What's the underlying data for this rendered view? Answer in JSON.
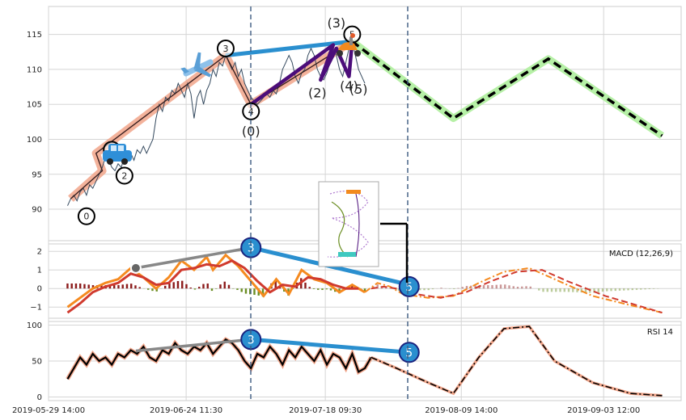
{
  "colors": {
    "grid": "#d5d5d5",
    "price": "#34495e",
    "salmon": "#f1a58a",
    "blue": "#2a8fcf",
    "purple": "#4b0d7a",
    "green_band": "#b6f0a6",
    "macd_orange": "#f58a1f",
    "macd_red": "#d03a2e",
    "hist_red": "#8b1a1a",
    "hist_green": "#6b8e23"
  },
  "chart_data": [
    {
      "type": "line",
      "panel": "price",
      "yticks": [
        90,
        95,
        100,
        105,
        110,
        115
      ],
      "ylim": [
        85.5,
        119
      ],
      "dates": [
        "2019-05-29 14:00",
        "2019-06-24 11:30",
        "2019-07-18 09:30",
        "2019-08-09 14:00",
        "2019-09-03 12:00"
      ],
      "price_series": [
        [
          0.03,
          90.5
        ],
        [
          0.035,
          91.5
        ],
        [
          0.04,
          92
        ],
        [
          0.045,
          91.2
        ],
        [
          0.05,
          92.5
        ],
        [
          0.055,
          93
        ],
        [
          0.06,
          92
        ],
        [
          0.065,
          93.5
        ],
        [
          0.07,
          93
        ],
        [
          0.075,
          94
        ],
        [
          0.08,
          95
        ],
        [
          0.085,
          96
        ],
        [
          0.09,
          97.5
        ],
        [
          0.095,
          97
        ],
        [
          0.1,
          96
        ],
        [
          0.105,
          95.5
        ],
        [
          0.11,
          96.5
        ],
        [
          0.115,
          96
        ],
        [
          0.12,
          97.5
        ],
        [
          0.125,
          97
        ],
        [
          0.13,
          98
        ],
        [
          0.135,
          97
        ],
        [
          0.14,
          98.5
        ],
        [
          0.145,
          98
        ],
        [
          0.15,
          99
        ],
        [
          0.155,
          98
        ],
        [
          0.16,
          99
        ],
        [
          0.165,
          100
        ],
        [
          0.17,
          103
        ],
        [
          0.175,
          105
        ],
        [
          0.18,
          104
        ],
        [
          0.185,
          106
        ],
        [
          0.19,
          105.5
        ],
        [
          0.195,
          107
        ],
        [
          0.2,
          106.5
        ],
        [
          0.205,
          108
        ],
        [
          0.21,
          107
        ],
        [
          0.215,
          106
        ],
        [
          0.22,
          108
        ],
        [
          0.225,
          106.5
        ],
        [
          0.23,
          103
        ],
        [
          0.235,
          106
        ],
        [
          0.24,
          107
        ],
        [
          0.245,
          105
        ],
        [
          0.25,
          107
        ],
        [
          0.255,
          108
        ],
        [
          0.26,
          110
        ],
        [
          0.265,
          109
        ],
        [
          0.27,
          111
        ],
        [
          0.275,
          110.5
        ],
        [
          0.28,
          112
        ],
        [
          0.285,
          111
        ],
        [
          0.29,
          110
        ],
        [
          0.295,
          111
        ],
        [
          0.3,
          109
        ],
        [
          0.305,
          110
        ],
        [
          0.31,
          108
        ],
        [
          0.315,
          107
        ],
        [
          0.32,
          106
        ],
        [
          0.325,
          105.5
        ],
        [
          0.33,
          105
        ],
        [
          0.335,
          105.5
        ],
        [
          0.34,
          106
        ],
        [
          0.345,
          106.5
        ],
        [
          0.35,
          106
        ],
        [
          0.355,
          107
        ],
        [
          0.36,
          106.5
        ],
        [
          0.365,
          108
        ],
        [
          0.37,
          110
        ],
        [
          0.375,
          111
        ],
        [
          0.38,
          112
        ],
        [
          0.385,
          111
        ],
        [
          0.39,
          109
        ],
        [
          0.395,
          108
        ],
        [
          0.4,
          109.5
        ],
        [
          0.405,
          110
        ],
        [
          0.41,
          112
        ],
        [
          0.415,
          113
        ],
        [
          0.42,
          112
        ],
        [
          0.425,
          110
        ],
        [
          0.43,
          109
        ],
        [
          0.435,
          108.5
        ],
        [
          0.44,
          109.5
        ],
        [
          0.445,
          111
        ],
        [
          0.45,
          113
        ],
        [
          0.455,
          112
        ],
        [
          0.46,
          110
        ],
        [
          0.465,
          109
        ],
        [
          0.47,
          111
        ],
        [
          0.475,
          113
        ],
        [
          0.48,
          114
        ],
        [
          0.485,
          112
        ],
        [
          0.49,
          110
        ],
        [
          0.495,
          109
        ],
        [
          0.5,
          108
        ]
      ],
      "wave_points": {
        "primary": [
          [
            0.035,
            91.5
          ],
          [
            0.085,
            95.5
          ],
          [
            0.075,
            98
          ],
          [
            0.28,
            112
          ],
          [
            0.32,
            105
          ],
          [
            0.48,
            114
          ]
        ],
        "projection": [
          [
            0.48,
            114
          ],
          [
            0.64,
            103
          ],
          [
            0.79,
            111.5
          ],
          [
            0.97,
            100.5
          ]
        ],
        "secondary": [
          [
            0.32,
            105
          ],
          [
            0.45,
            113.5
          ],
          [
            0.43,
            108.5
          ],
          [
            0.455,
            113
          ],
          [
            0.475,
            109
          ],
          [
            0.48,
            114
          ]
        ]
      },
      "wave_labels": [
        {
          "text": "0",
          "x": 0.06,
          "y": 89,
          "circled": true
        },
        {
          "text": "1",
          "x": 0.1,
          "y": 98.5,
          "circled": true
        },
        {
          "text": "2",
          "x": 0.12,
          "y": 94.8,
          "circled": true
        },
        {
          "text": "3",
          "x": 0.28,
          "y": 113,
          "circled": true
        },
        {
          "text": "4",
          "x": 0.32,
          "y": 104,
          "circled": true
        },
        {
          "text": "5",
          "x": 0.48,
          "y": 115,
          "circled": true
        },
        {
          "text": "(0)",
          "x": 0.32,
          "y": 100.5,
          "circled": false
        },
        {
          "text": "(2)",
          "x": 0.425,
          "y": 106,
          "circled": false
        },
        {
          "text": "(3)",
          "x": 0.455,
          "y": 116,
          "circled": false
        },
        {
          "text": "(4)",
          "x": 0.475,
          "y": 107,
          "circled": false
        },
        {
          "text": "(5)",
          "x": 0.49,
          "y": 106.5,
          "circled": false
        }
      ]
    },
    {
      "type": "line",
      "panel": "macd",
      "label": "MACD (12,26,9)",
      "yticks": [
        -1,
        0,
        1,
        2
      ],
      "ylim": [
        -1.6,
        2.4
      ],
      "macd": [
        [
          0.03,
          -1
        ],
        [
          0.05,
          -0.5
        ],
        [
          0.07,
          0
        ],
        [
          0.09,
          0.3
        ],
        [
          0.11,
          0.5
        ],
        [
          0.13,
          1.1
        ],
        [
          0.15,
          0.6
        ],
        [
          0.17,
          0
        ],
        [
          0.19,
          0.6
        ],
        [
          0.21,
          1.5
        ],
        [
          0.23,
          1
        ],
        [
          0.25,
          1.7
        ],
        [
          0.26,
          1
        ],
        [
          0.28,
          1.8
        ],
        [
          0.3,
          1.2
        ],
        [
          0.32,
          0.4
        ],
        [
          0.34,
          -0.4
        ],
        [
          0.36,
          0.5
        ],
        [
          0.38,
          -0.3
        ],
        [
          0.4,
          1
        ],
        [
          0.42,
          0.5
        ],
        [
          0.44,
          0.3
        ],
        [
          0.46,
          -0.2
        ],
        [
          0.48,
          0.2
        ],
        [
          0.5,
          -0.2
        ],
        [
          0.52,
          0.3
        ],
        [
          0.54,
          0.1
        ],
        [
          0.56,
          -0.3
        ],
        [
          0.6,
          -0.5
        ],
        [
          0.64,
          -0.4
        ],
        [
          0.68,
          0.3
        ],
        [
          0.72,
          0.9
        ],
        [
          0.76,
          1.1
        ],
        [
          0.8,
          0.5
        ],
        [
          0.86,
          -0.4
        ],
        [
          0.92,
          -0.9
        ],
        [
          0.97,
          -1.3
        ]
      ],
      "signal": [
        [
          0.03,
          -1.3
        ],
        [
          0.05,
          -0.8
        ],
        [
          0.07,
          -0.2
        ],
        [
          0.09,
          0.1
        ],
        [
          0.11,
          0.3
        ],
        [
          0.13,
          0.8
        ],
        [
          0.15,
          0.6
        ],
        [
          0.17,
          0.2
        ],
        [
          0.19,
          0.3
        ],
        [
          0.21,
          1
        ],
        [
          0.23,
          1.1
        ],
        [
          0.25,
          1.3
        ],
        [
          0.27,
          1.2
        ],
        [
          0.29,
          1.5
        ],
        [
          0.31,
          1.1
        ],
        [
          0.33,
          0.4
        ],
        [
          0.35,
          -0.2
        ],
        [
          0.37,
          0.2
        ],
        [
          0.39,
          0.1
        ],
        [
          0.41,
          0.6
        ],
        [
          0.43,
          0.5
        ],
        [
          0.45,
          0.2
        ],
        [
          0.47,
          0
        ],
        [
          0.49,
          0
        ],
        [
          0.51,
          0
        ],
        [
          0.53,
          0.1
        ],
        [
          0.55,
          0
        ],
        [
          0.58,
          -0.3
        ],
        [
          0.62,
          -0.5
        ],
        [
          0.66,
          -0.2
        ],
        [
          0.7,
          0.4
        ],
        [
          0.74,
          0.9
        ],
        [
          0.78,
          1
        ],
        [
          0.82,
          0.4
        ],
        [
          0.88,
          -0.4
        ],
        [
          0.94,
          -1
        ],
        [
          0.97,
          -1.3
        ]
      ]
    },
    {
      "type": "line",
      "panel": "rsi",
      "label": "RSI 14",
      "yticks": [
        0,
        50,
        100
      ],
      "ylim": [
        -5,
        105
      ],
      "rsi": [
        [
          0.03,
          25
        ],
        [
          0.04,
          40
        ],
        [
          0.05,
          55
        ],
        [
          0.06,
          45
        ],
        [
          0.07,
          60
        ],
        [
          0.08,
          50
        ],
        [
          0.09,
          55
        ],
        [
          0.1,
          45
        ],
        [
          0.11,
          60
        ],
        [
          0.12,
          55
        ],
        [
          0.13,
          65
        ],
        [
          0.14,
          60
        ],
        [
          0.15,
          70
        ],
        [
          0.16,
          55
        ],
        [
          0.17,
          50
        ],
        [
          0.18,
          65
        ],
        [
          0.19,
          60
        ],
        [
          0.2,
          75
        ],
        [
          0.21,
          65
        ],
        [
          0.22,
          60
        ],
        [
          0.23,
          70
        ],
        [
          0.24,
          65
        ],
        [
          0.25,
          75
        ],
        [
          0.26,
          60
        ],
        [
          0.27,
          70
        ],
        [
          0.28,
          80
        ],
        [
          0.29,
          75
        ],
        [
          0.3,
          65
        ],
        [
          0.31,
          50
        ],
        [
          0.32,
          40
        ],
        [
          0.33,
          60
        ],
        [
          0.34,
          55
        ],
        [
          0.35,
          70
        ],
        [
          0.36,
          60
        ],
        [
          0.37,
          45
        ],
        [
          0.38,
          65
        ],
        [
          0.39,
          55
        ],
        [
          0.4,
          70
        ],
        [
          0.41,
          60
        ],
        [
          0.42,
          50
        ],
        [
          0.43,
          65
        ],
        [
          0.44,
          45
        ],
        [
          0.45,
          60
        ],
        [
          0.46,
          55
        ],
        [
          0.47,
          40
        ],
        [
          0.48,
          60
        ],
        [
          0.49,
          35
        ],
        [
          0.5,
          40
        ],
        [
          0.51,
          55
        ],
        [
          0.55,
          40
        ],
        [
          0.6,
          20
        ],
        [
          0.64,
          5
        ],
        [
          0.68,
          55
        ],
        [
          0.72,
          95
        ],
        [
          0.76,
          98
        ],
        [
          0.8,
          50
        ],
        [
          0.86,
          20
        ],
        [
          0.92,
          5
        ],
        [
          0.97,
          2
        ]
      ]
    }
  ]
}
